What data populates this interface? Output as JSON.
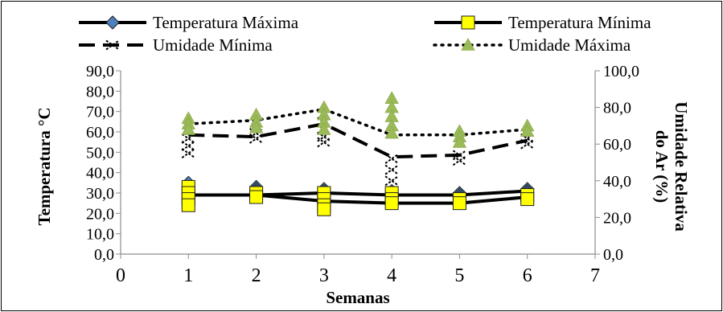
{
  "chart_data": {
    "type": "line",
    "xlabel": "Semanas",
    "ylabel": "Temperatura °C",
    "y2label_lines": [
      "Umidade Relativa",
      "do Ar (%)"
    ],
    "xlim": [
      0,
      7
    ],
    "ylim": [
      0,
      90
    ],
    "y2lim": [
      0,
      100
    ],
    "x_ticks": [
      "0",
      "1",
      "2",
      "3",
      "4",
      "5",
      "6",
      "7"
    ],
    "y_ticks": [
      "0,0",
      "10,0",
      "20,0",
      "30,0",
      "40,0",
      "50,0",
      "60,0",
      "70,0",
      "80,0",
      "90,0"
    ],
    "y2_ticks": [
      "0,0",
      "20,0",
      "40,0",
      "60,0",
      "80,0",
      "100,0"
    ],
    "legend_position": "top",
    "series": [
      {
        "name": "Temperatura Máxima",
        "axis": "left",
        "line": "solid",
        "marker": "diamond",
        "color": "#000000",
        "marker_fill": "#4f81bd",
        "x": [
          1,
          2,
          3,
          4,
          5,
          6
        ],
        "values": [
          29,
          29,
          30,
          29,
          29,
          31
        ],
        "samples": [
          [
            1,
            35
          ],
          [
            1,
            33
          ],
          [
            1,
            31
          ],
          [
            2,
            33
          ],
          [
            2,
            32
          ],
          [
            2,
            31
          ],
          [
            3,
            32
          ],
          [
            3,
            31
          ],
          [
            3,
            30
          ],
          [
            4,
            31
          ],
          [
            4,
            30
          ],
          [
            4,
            29
          ],
          [
            5,
            30
          ],
          [
            5,
            29
          ],
          [
            5,
            28
          ],
          [
            6,
            32
          ],
          [
            6,
            31
          ],
          [
            6,
            30
          ]
        ]
      },
      {
        "name": "Temperatura Mínima",
        "axis": "left",
        "line": "solid",
        "marker": "square",
        "color": "#000000",
        "marker_fill": "#ffff00",
        "x": [
          1,
          2,
          3,
          4,
          5,
          6
        ],
        "values": [
          29,
          29,
          26,
          25,
          25,
          28
        ],
        "samples": [
          [
            1,
            33
          ],
          [
            1,
            30
          ],
          [
            1,
            27
          ],
          [
            1,
            24
          ],
          [
            2,
            30
          ],
          [
            2,
            28
          ],
          [
            3,
            30
          ],
          [
            3,
            27
          ],
          [
            3,
            24
          ],
          [
            3,
            22
          ],
          [
            4,
            30
          ],
          [
            4,
            27
          ],
          [
            4,
            25
          ],
          [
            5,
            27
          ],
          [
            5,
            25
          ],
          [
            6,
            29
          ],
          [
            6,
            27
          ]
        ]
      },
      {
        "name": "Umidade Mínima",
        "axis": "right",
        "line": "dashed",
        "marker": "x",
        "color": "#000000",
        "marker_fill": "#ffffff",
        "x": [
          1,
          2,
          3,
          4,
          5,
          6
        ],
        "values": [
          65,
          64,
          71,
          53,
          54,
          62
        ],
        "samples": [
          [
            1,
            63
          ],
          [
            1,
            59
          ],
          [
            1,
            55
          ],
          [
            2,
            66
          ],
          [
            2,
            63
          ],
          [
            3,
            72
          ],
          [
            3,
            68
          ],
          [
            3,
            64
          ],
          [
            3,
            61
          ],
          [
            4,
            52
          ],
          [
            4,
            46
          ],
          [
            4,
            40
          ],
          [
            5,
            54
          ],
          [
            5,
            51
          ],
          [
            6,
            63
          ],
          [
            6,
            60
          ]
        ]
      },
      {
        "name": "Umidade Máxima",
        "axis": "right",
        "line": "dotted",
        "marker": "triangle",
        "color": "#000000",
        "marker_fill": "#9bbb59",
        "x": [
          1,
          2,
          3,
          4,
          5,
          6
        ],
        "values": [
          71,
          73,
          79,
          65,
          65,
          68
        ],
        "samples": [
          [
            1,
            74
          ],
          [
            1,
            71
          ],
          [
            1,
            68
          ],
          [
            2,
            76
          ],
          [
            2,
            72
          ],
          [
            2,
            69
          ],
          [
            3,
            80
          ],
          [
            3,
            76
          ],
          [
            3,
            72
          ],
          [
            3,
            68
          ],
          [
            4,
            85
          ],
          [
            4,
            80
          ],
          [
            4,
            75
          ],
          [
            4,
            70
          ],
          [
            4,
            66
          ],
          [
            5,
            67
          ],
          [
            5,
            64
          ],
          [
            5,
            61
          ],
          [
            6,
            70
          ],
          [
            6,
            67
          ]
        ]
      }
    ]
  }
}
